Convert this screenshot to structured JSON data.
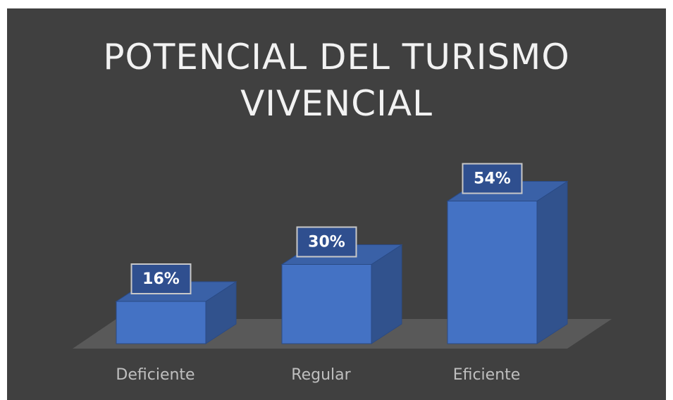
{
  "chart_data": {
    "type": "bar3d",
    "title": "POTENCIAL DEL TURISMO VIVENCIAL",
    "categories": [
      "Deficiente",
      "Regular",
      "Eficiente"
    ],
    "values": [
      16,
      30,
      54
    ],
    "value_labels": [
      "16%",
      "30%",
      "54%"
    ],
    "color": "#4472c4"
  }
}
